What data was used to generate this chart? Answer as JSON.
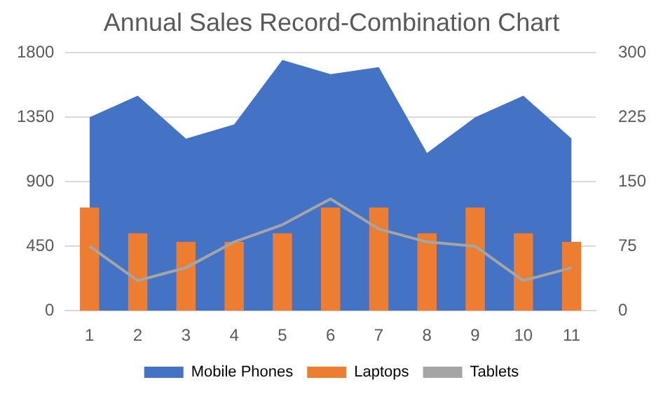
{
  "chart_data": {
    "type": "bar",
    "title": "Annual Sales Record-Combination Chart",
    "categories": [
      "1",
      "2",
      "3",
      "4",
      "5",
      "6",
      "7",
      "8",
      "9",
      "10",
      "11"
    ],
    "series": [
      {
        "name": "Mobile Phones",
        "type": "area",
        "color": "#4472c4",
        "values": [
          1350,
          1500,
          1200,
          1300,
          1750,
          1650,
          1700,
          1100,
          1350,
          1500,
          1200
        ]
      },
      {
        "name": "Laptops",
        "axis": "y2",
        "color": "#ed7d31",
        "values": [
          120,
          90,
          80,
          80,
          90,
          120,
          120,
          90,
          120,
          90,
          80
        ]
      },
      {
        "name": "Tablets",
        "type": "line",
        "axis": "y2",
        "color": "#a5a5a5",
        "values": [
          75,
          35,
          50,
          80,
          100,
          130,
          95,
          80,
          75,
          35,
          50
        ]
      }
    ],
    "ylim": [
      0,
      1800
    ],
    "yticks": [
      0,
      450,
      900,
      1350,
      1800
    ],
    "y2lim": [
      0,
      300
    ],
    "y2ticks": [
      0,
      75,
      150,
      225,
      300
    ],
    "grid": "y",
    "legend": "bottom",
    "marker": "none"
  }
}
